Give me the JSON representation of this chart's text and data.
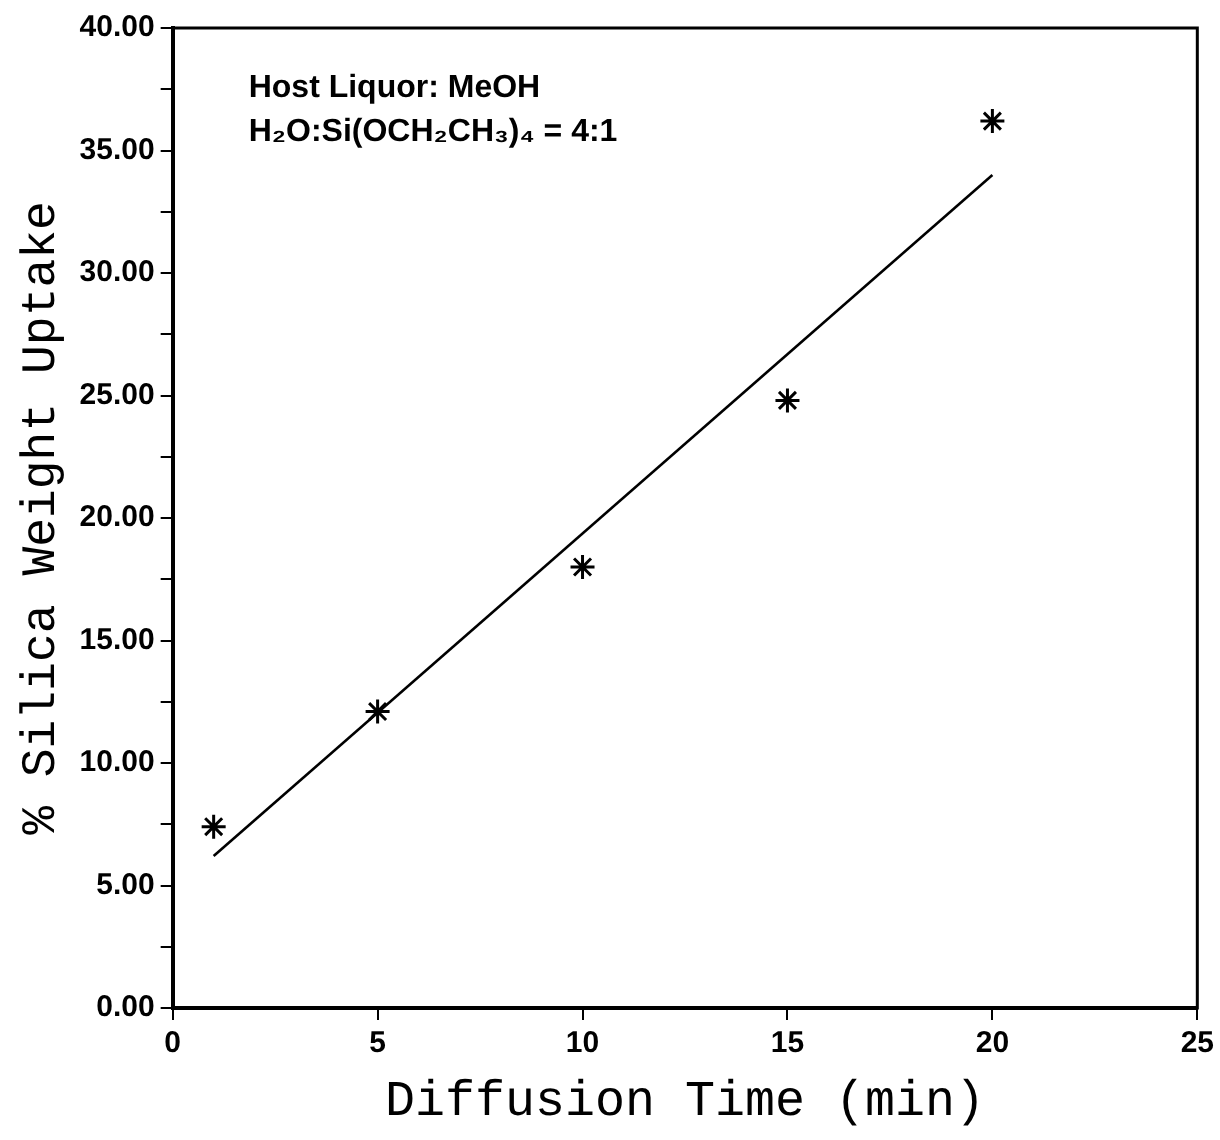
{
  "chart_data": {
    "type": "scatter",
    "xlabel": "Diffusion Time (min)",
    "ylabel": "% Silica Weight Uptake",
    "annotations": [
      "Host Liquor: MeOH",
      "H₂O:Si(OCH₂CH₃)₄ = 4:1"
    ],
    "xlim": [
      0,
      25
    ],
    "xticks": [
      0,
      5,
      10,
      15,
      20,
      25
    ],
    "ylim": [
      0,
      40
    ],
    "yticks": [
      {
        "value": 0,
        "label": "0.00"
      },
      {
        "value": 2.5,
        "label": null
      },
      {
        "value": 5,
        "label": "5.00"
      },
      {
        "value": 7.5,
        "label": null
      },
      {
        "value": 10,
        "label": "10.00"
      },
      {
        "value": 12.5,
        "label": null
      },
      {
        "value": 15,
        "label": "15.00"
      },
      {
        "value": 17.5,
        "label": null
      },
      {
        "value": 20,
        "label": "20.00"
      },
      {
        "value": 22.5,
        "label": null
      },
      {
        "value": 25,
        "label": "25.00"
      },
      {
        "value": 27.5,
        "label": null
      },
      {
        "value": 30,
        "label": "30.00"
      },
      {
        "value": 32.5,
        "label": null
      },
      {
        "value": 35,
        "label": "35.00"
      },
      {
        "value": 37.5,
        "label": null
      },
      {
        "value": 40,
        "label": "40.00"
      }
    ],
    "grid": false,
    "legend": false,
    "marker": "cross",
    "series": [
      {
        "color": "#000000",
        "x": [
          1,
          5,
          10,
          15,
          20
        ],
        "values": [
          7.4,
          12.1,
          18.0,
          24.8,
          36.2
        ]
      },
      {
        "type": "line",
        "color": "#000000",
        "marker": "none",
        "line_style": "solid",
        "x": [
          1,
          20
        ],
        "values": [
          6.2,
          34.0
        ]
      }
    ]
  }
}
